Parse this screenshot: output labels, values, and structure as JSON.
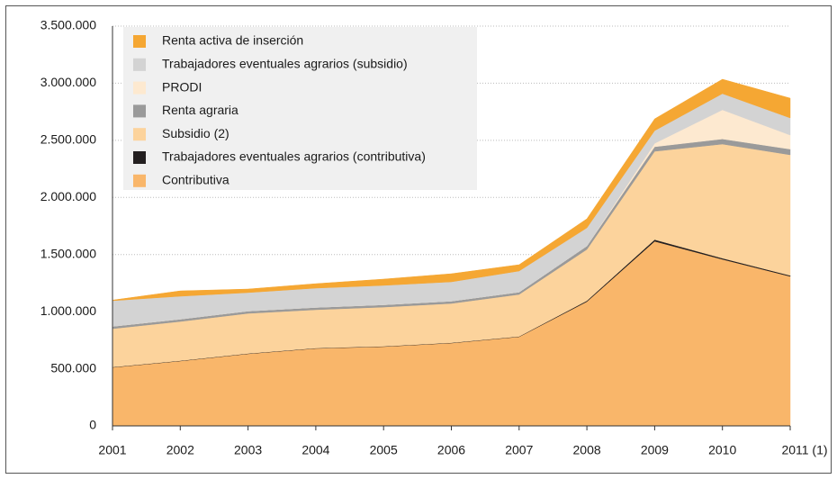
{
  "chart_data": {
    "type": "stacked_area",
    "categories": [
      "2001",
      "2002",
      "2003",
      "2004",
      "2005",
      "2006",
      "2007",
      "2008",
      "2009",
      "2010",
      "2011 (1)"
    ],
    "series": [
      {
        "name": "Contributiva",
        "color": "#f9b66a",
        "values": [
          512000,
          568000,
          631000,
          678000,
          694000,
          725000,
          780000,
          1088000,
          1616000,
          1458000,
          1309000
        ]
      },
      {
        "name": "Trabajadores eventuales agrarios (contributiva)",
        "color": "#231f20",
        "values": [
          3000,
          3000,
          3000,
          3000,
          3000,
          3000,
          3000,
          8000,
          15000,
          10000,
          8000
        ]
      },
      {
        "name": "Subsidio (2)",
        "color": "#fcd39c",
        "values": [
          336000,
          343000,
          351000,
          336000,
          343000,
          344000,
          368000,
          449000,
          773000,
          999000,
          1056000
        ]
      },
      {
        "name": "Renta agraria",
        "color": "#9a9a9a",
        "values": [
          20000,
          20000,
          20000,
          20000,
          20000,
          20000,
          20000,
          30000,
          40000,
          45000,
          50000
        ]
      },
      {
        "name": "PRODI",
        "color": "#fde9d0",
        "values": [
          0,
          0,
          0,
          0,
          0,
          0,
          0,
          0,
          30000,
          255000,
          123000
        ]
      },
      {
        "name": "Trabajadores eventuales agrarios (subsidio)",
        "color": "#d3d3d3",
        "values": [
          225000,
          201000,
          162000,
          169000,
          170000,
          169000,
          185000,
          159000,
          111000,
          142000,
          150000
        ]
      },
      {
        "name": "Renta activa de inserción",
        "color": "#f5a733",
        "values": [
          5000,
          47000,
          31000,
          39000,
          55000,
          71000,
          55000,
          79000,
          103000,
          126000,
          173000
        ]
      }
    ],
    "ylim": [
      0,
      3500000
    ],
    "yticks": [
      0,
      {
        "value": 500000,
        "label": "500.000"
      },
      {
        "value": 1000000,
        "label": "1.000.000"
      },
      {
        "value": 1500000,
        "label": "1.500.000"
      },
      {
        "value": 2000000,
        "label": "2.000.000"
      },
      {
        "value": 2500000,
        "label": "2.500.000"
      },
      {
        "value": 3000000,
        "label": "3.000.000"
      },
      {
        "value": 3500000,
        "label": "3.500.000"
      }
    ],
    "grid": true,
    "legend": "top-left"
  }
}
